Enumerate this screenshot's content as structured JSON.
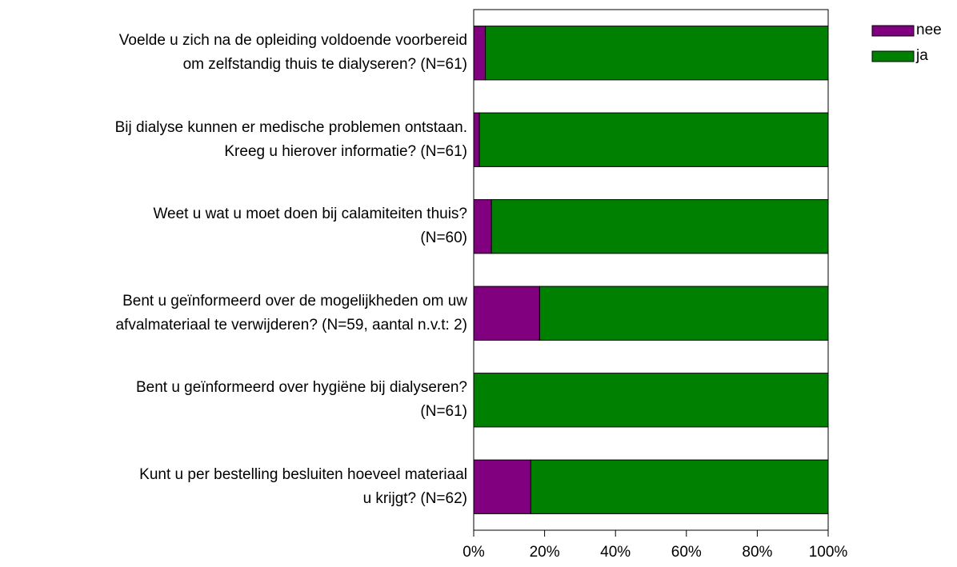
{
  "chart_data": {
    "type": "stacked_bar_horizontal",
    "categories": [
      "Voelde u zich na de opleiding voldoende voorbereid\nom zelfstandig thuis te dialyseren? (N=61)",
      "Bij dialyse kunnen er medische problemen ontstaan.\nKreeg u hierover informatie? (N=61)",
      "Weet u wat u moet doen bij calamiteiten thuis?\n(N=60)",
      "Bent u geïnformeerd over de mogelijkheden om uw\nafvalmateriaal te verwijderen? (N=59, aantal n.v.t: 2)",
      "Bent u geïnformeerd over hygiëne bij dialyseren?\n(N=61)",
      "Kunt u per bestelling besluiten hoeveel materiaal\nu krijgt? (N=62)"
    ],
    "series": [
      {
        "name": "nee",
        "color": "#800080",
        "values": [
          3.3,
          1.6,
          5,
          18.6,
          0,
          16.1
        ]
      },
      {
        "name": "ja",
        "color": "#008000",
        "values": [
          96.7,
          98.4,
          95,
          81.4,
          100,
          83.9
        ]
      }
    ],
    "xlim": [
      0,
      100
    ],
    "xticks": [
      {
        "value": 0,
        "label": "0%"
      },
      {
        "value": 20,
        "label": "20%"
      },
      {
        "value": 40,
        "label": "40%"
      },
      {
        "value": 60,
        "label": "60%"
      },
      {
        "value": 80,
        "label": "80%"
      },
      {
        "value": 100,
        "label": "100%"
      }
    ],
    "legend": "right"
  }
}
